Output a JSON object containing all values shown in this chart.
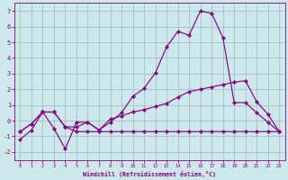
{
  "xlabel": "Windchill (Refroidissement éolien,°C)",
  "bg_color": "#cce8ea",
  "line_color": "#880088",
  "grid_color": "#99bbbb",
  "xlim": [
    -0.5,
    23.5
  ],
  "ylim": [
    -2.5,
    7.5
  ],
  "xticks": [
    0,
    1,
    2,
    3,
    4,
    5,
    6,
    7,
    8,
    9,
    10,
    11,
    12,
    13,
    14,
    15,
    16,
    17,
    18,
    19,
    20,
    21,
    22,
    23
  ],
  "yticks": [
    -2,
    -1,
    0,
    1,
    2,
    3,
    4,
    5,
    6,
    7
  ],
  "line1_x": [
    0,
    1,
    2,
    3,
    4,
    5,
    6,
    7,
    8,
    9,
    10,
    11,
    12,
    13,
    14,
    15,
    16,
    17,
    18,
    19,
    20,
    21,
    22,
    23
  ],
  "line1_y": [
    -1.2,
    -0.6,
    0.55,
    0.55,
    -0.4,
    -0.4,
    -0.1,
    -0.6,
    -0.1,
    0.5,
    1.55,
    2.05,
    3.05,
    4.7,
    5.7,
    5.45,
    7.0,
    6.85,
    5.3,
    1.15,
    1.15,
    0.5,
    -0.1,
    -0.7
  ],
  "line2_x": [
    0,
    1,
    2,
    3,
    4,
    5,
    6,
    7,
    8,
    9,
    10,
    11,
    12,
    13,
    14,
    15,
    16,
    17,
    18,
    19,
    20,
    21,
    22,
    23
  ],
  "line2_y": [
    -0.7,
    -0.2,
    0.55,
    -0.5,
    -1.8,
    -0.1,
    -0.1,
    -0.6,
    0.1,
    0.3,
    0.55,
    0.7,
    0.9,
    1.1,
    1.5,
    1.85,
    2.0,
    2.15,
    2.3,
    2.45,
    2.55,
    1.2,
    0.4,
    -0.7
  ],
  "line3_x": [
    0,
    1,
    2,
    3,
    4,
    5,
    6,
    7,
    8,
    9,
    10,
    11,
    12,
    13,
    14,
    15,
    16,
    17,
    18,
    19,
    20,
    21,
    22,
    23
  ],
  "line3_y": [
    -0.7,
    -0.2,
    0.55,
    0.55,
    -0.4,
    -0.7,
    -0.7,
    -0.7,
    -0.7,
    -0.7,
    -0.7,
    -0.7,
    -0.7,
    -0.7,
    -0.7,
    -0.7,
    -0.7,
    -0.7,
    -0.7,
    -0.7,
    -0.7,
    -0.7,
    -0.7,
    -0.7
  ]
}
